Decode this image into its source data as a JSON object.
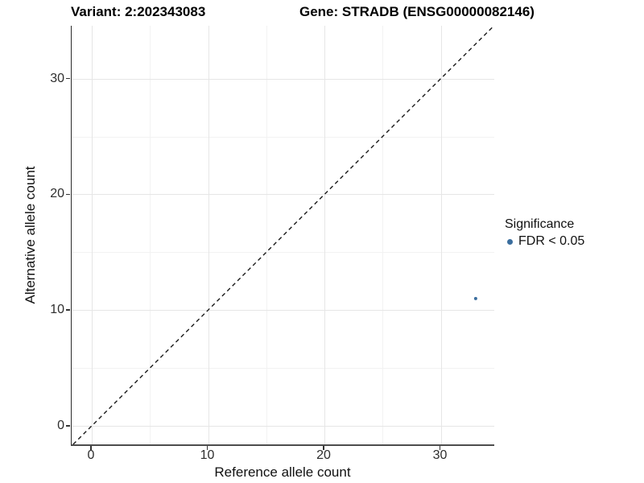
{
  "header": {
    "variant_title": "Variant: 2:202343083",
    "gene_title": "Gene: STRADB (ENSG00000082146)"
  },
  "legend": {
    "title": "Significance",
    "items": [
      {
        "label": "FDR < 0.05",
        "color": "#3b6e9e"
      }
    ]
  },
  "chart_data": {
    "type": "scatter",
    "title": "Variant: 2:202343083   Gene: STRADB (ENSG00000082146)",
    "xlabel": "Reference allele count",
    "ylabel": "Alternative allele count",
    "xlim": [
      -1.73,
      34.6
    ],
    "ylim": [
      -1.6,
      34.57
    ],
    "x_ticks": [
      0,
      10,
      20,
      30
    ],
    "y_ticks": [
      0,
      10,
      20,
      30
    ],
    "x_minor_ticks": [
      5,
      15,
      25
    ],
    "y_minor_ticks": [
      5,
      15,
      25
    ],
    "grid": true,
    "legend_position": "right",
    "series": [
      {
        "name": "FDR < 0.05",
        "color": "#3b6e9e",
        "points": [
          {
            "x": 33,
            "y": 11
          }
        ],
        "point_radius": 2
      }
    ],
    "reference_line": {
      "type": "identity y = x",
      "style": "dashed",
      "color": "#1a1a1a",
      "from": [
        -1.6,
        -1.6
      ],
      "to": [
        34.57,
        34.57
      ]
    },
    "colors": {
      "grid_major": "#e6e6e6",
      "grid_minor": "#f2f2f2",
      "axis_line": "#333333",
      "point": "#3b6e9e"
    }
  }
}
